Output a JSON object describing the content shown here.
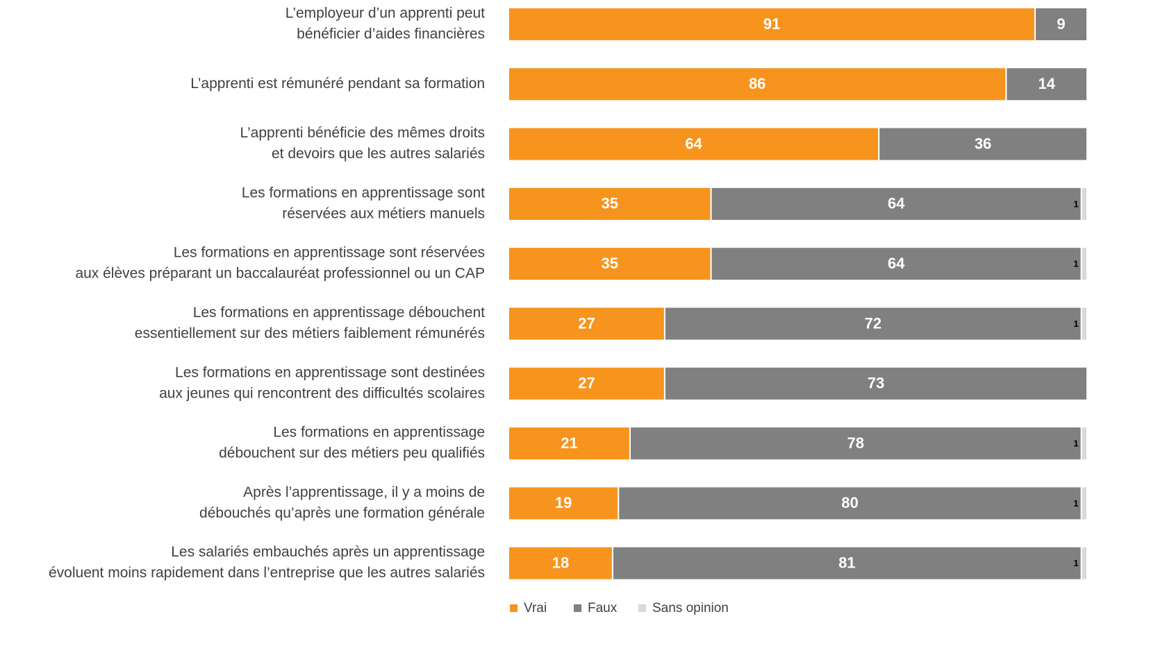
{
  "chart_data": {
    "type": "stacked-bar-horizontal",
    "categories": [
      [
        "L’employeur d’un apprenti peut",
        "bénéficier d’aides financières"
      ],
      [
        "L’apprenti est rémunéré pendant sa formation"
      ],
      [
        "L’apprenti bénéficie des mêmes droits",
        "et devoirs que les autres salariés"
      ],
      [
        "Les formations en apprentissage sont",
        "réservées aux métiers manuels"
      ],
      [
        "Les formations en apprentissage sont réservées",
        "aux élèves préparant un baccalauréat professionnel ou un CAP"
      ],
      [
        "Les formations en apprentissage débouchent",
        "essentiellement sur des métiers faiblement rémunérés"
      ],
      [
        "Les formations en apprentissage sont destinées",
        "aux jeunes qui rencontrent des difficultés scolaires"
      ],
      [
        "Les formations en apprentissage",
        "débouchent sur des métiers peu qualifiés"
      ],
      [
        "Après l’apprentissage, il y a moins de",
        "débouchés qu’après une formation générale"
      ],
      [
        "Les salariés embauchés après un apprentissage",
        "évoluent moins rapidement dans l’entreprise que les autres salariés"
      ]
    ],
    "series": [
      {
        "name": "Vrai",
        "color": "#f7941d",
        "values": [
          91,
          86,
          64,
          35,
          35,
          27,
          27,
          21,
          19,
          18
        ]
      },
      {
        "name": "Faux",
        "color": "#808080",
        "values": [
          9,
          14,
          36,
          64,
          64,
          72,
          73,
          78,
          80,
          81
        ]
      },
      {
        "name": "Sans opinion",
        "color": "#d9d9d9",
        "values": [
          null,
          null,
          null,
          1,
          1,
          1,
          null,
          1,
          1,
          1
        ]
      }
    ],
    "xlim": [
      0,
      100
    ],
    "legend": "bottom"
  }
}
